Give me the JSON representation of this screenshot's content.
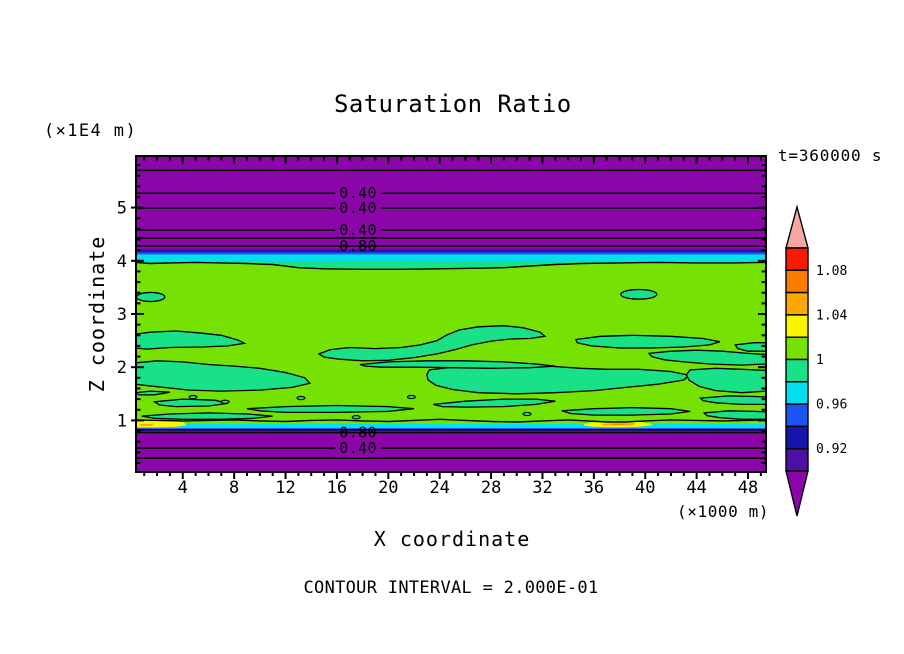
{
  "figure": {
    "title": "Saturation Ratio",
    "time_label": "t=360000 s",
    "footer": "CONTOUR INTERVAL = 2.000E-01",
    "x_axis": {
      "label": "X coordinate",
      "unit": "(×1000 m)"
    },
    "y_axis": {
      "label": "Z coordinate",
      "unit": "(×1E4 m)"
    },
    "colors": {
      "purple": "#8b06a8",
      "violet": "#4d10a5",
      "navy": "#1516b0",
      "royal": "#1b55f4",
      "cyan": "#02e0ef",
      "spring": "#19e187",
      "green": "#76e203",
      "yellow": "#fbf600",
      "orange": "#fda800",
      "orangered": "#fa7d00",
      "red": "#f81c05",
      "pink": "#f6a7a2",
      "line": "#000000",
      "bg": "#ffffff"
    }
  },
  "chart_data": {
    "type": "heatmap",
    "title": "Saturation Ratio",
    "xlabel": "X coordinate (×1000 m)",
    "ylabel": "Z coordinate (×1E4 m)",
    "contour_interval_label": "CONTOUR INTERVAL = 2.000E-01",
    "time": "t=360000 s",
    "x_range": [
      0.36,
      49.4
    ],
    "z_range": [
      0.03,
      5.97
    ],
    "x_major_ticks": [
      4,
      8,
      12,
      16,
      20,
      24,
      28,
      32,
      36,
      40,
      44,
      48
    ],
    "x_minor_step": 1,
    "y_major_ticks": [
      1,
      2,
      3,
      4,
      5
    ],
    "y_minor_step": 0.2,
    "colorbar": {
      "over_color": "pink",
      "under_color": "purple",
      "segment_colors": [
        "red",
        "orangered",
        "orange",
        "yellow",
        "green",
        "spring",
        "cyan",
        "royal",
        "navy",
        "violet"
      ],
      "labels": [
        {
          "text": "1.08",
          "boundary_index": 1
        },
        {
          "text": "1.04",
          "boundary_index": 3
        },
        {
          "text": "1",
          "boundary_index": 5
        },
        {
          "text": "0.96",
          "boundary_index": 7
        },
        {
          "text": "0.92",
          "boundary_index": 9
        }
      ]
    },
    "bands_top": [
      {
        "z0": 4.22,
        "z1": 5.97,
        "c": "purple"
      },
      {
        "z0": 4.19,
        "z1": 4.22,
        "c": "violet"
      },
      {
        "z0": 4.16,
        "z1": 4.19,
        "c": "navy"
      },
      {
        "z0": 4.12,
        "z1": 4.16,
        "c": "royal"
      },
      {
        "z0": 3.99,
        "z1": 4.12,
        "c": "cyan"
      }
    ],
    "spring_cap": {
      "z_top": 3.99,
      "bottom_boundary": [
        [
          0.3,
          3.97
        ],
        [
          1.5,
          3.95
        ],
        [
          3,
          3.96
        ],
        [
          5,
          3.97
        ],
        [
          7,
          3.96
        ],
        [
          9,
          3.95
        ],
        [
          11,
          3.93
        ],
        [
          12,
          3.9
        ],
        [
          13,
          3.87
        ],
        [
          15,
          3.85
        ],
        [
          18,
          3.84
        ],
        [
          21,
          3.84
        ],
        [
          24,
          3.85
        ],
        [
          27,
          3.86
        ],
        [
          29,
          3.87
        ],
        [
          31,
          3.9
        ],
        [
          33,
          3.93
        ],
        [
          35,
          3.95
        ],
        [
          38,
          3.96
        ],
        [
          41,
          3.97
        ],
        [
          44,
          3.96
        ],
        [
          47,
          3.96
        ],
        [
          49.4,
          3.97
        ]
      ]
    },
    "green_bottom_boundary": [
      [
        0.3,
        1.01
      ],
      [
        2,
        1.0
      ],
      [
        4,
        0.99
      ],
      [
        6,
        1.0
      ],
      [
        8,
        1.01
      ],
      [
        10,
        0.99
      ],
      [
        12,
        0.98
      ],
      [
        14,
        1.0
      ],
      [
        16,
        1.01
      ],
      [
        18,
        0.99
      ],
      [
        20,
        0.98
      ],
      [
        22,
        1.0
      ],
      [
        24,
        1.02
      ],
      [
        26,
        1.0
      ],
      [
        28,
        0.98
      ],
      [
        30,
        0.97
      ],
      [
        32,
        0.99
      ],
      [
        34,
        1.01
      ],
      [
        35.5,
        0.99
      ],
      [
        37,
        0.97
      ],
      [
        38.5,
        0.97
      ],
      [
        40,
        0.99
      ],
      [
        42,
        1.01
      ],
      [
        44,
        1.0
      ],
      [
        46,
        0.99
      ],
      [
        48,
        1.0
      ],
      [
        49.4,
        1.01
      ]
    ],
    "bottom_stripes": [
      {
        "z0": 0.855,
        "z1": 0.935,
        "c": "cyan"
      },
      {
        "z0": 0.815,
        "z1": 0.855,
        "c": "royal"
      },
      {
        "z0": 0.79,
        "z1": 0.815,
        "c": "violet"
      },
      {
        "z0": 0.03,
        "z1": 0.79,
        "c": "purple"
      }
    ],
    "purple_top_boundary_z": 0.825,
    "yellow_patches": [
      [
        [
          0.3,
          1.01
        ],
        [
          1.5,
          1.02
        ],
        [
          3,
          1.0
        ],
        [
          4.1,
          0.96
        ],
        [
          4.3,
          0.91
        ],
        [
          3.5,
          0.88
        ],
        [
          2,
          0.87
        ],
        [
          0.3,
          0.87
        ]
      ],
      [
        [
          35.2,
          0.93
        ],
        [
          36,
          0.97
        ],
        [
          37.5,
          0.99
        ],
        [
          39,
          0.98
        ],
        [
          40.3,
          0.95
        ],
        [
          40.6,
          0.91
        ],
        [
          39.5,
          0.88
        ],
        [
          37.5,
          0.87
        ],
        [
          36,
          0.88
        ],
        [
          35.3,
          0.9
        ]
      ]
    ],
    "orange_dashes": [
      [
        [
          0.6,
          0.93
        ],
        [
          1.8,
          0.94
        ],
        [
          1.6,
          0.9
        ],
        [
          0.7,
          0.9
        ]
      ],
      [
        [
          36.5,
          0.94
        ],
        [
          39.3,
          0.95
        ],
        [
          39.0,
          0.91
        ],
        [
          36.8,
          0.91
        ]
      ]
    ],
    "red_dashes": [
      [
        [
          37.3,
          0.94
        ],
        [
          38.6,
          0.94
        ],
        [
          38.4,
          0.915
        ],
        [
          37.5,
          0.915
        ]
      ]
    ],
    "line_contours": [
      {
        "z": 5.7,
        "label": "",
        "boxed": false
      },
      {
        "z": 5.27,
        "label": "0.40",
        "boxed": true
      },
      {
        "z": 4.99,
        "label": "0.40",
        "boxed": true
      },
      {
        "z": 4.58,
        "label": "0.40",
        "boxed": true
      },
      {
        "z": 4.43,
        "label": "",
        "boxed": false
      },
      {
        "z": 4.28,
        "label": "0.80",
        "boxed": false
      },
      {
        "z": 0.77,
        "label": "0.80",
        "boxed": false
      },
      {
        "z": 0.48,
        "label": "0.40",
        "boxed": true
      },
      {
        "z": 0.29,
        "label": "",
        "boxed": false
      }
    ],
    "contour_label_x": 17.65,
    "blob_ellipses": [
      [
        1.5,
        3.32,
        1.1,
        0.085
      ],
      [
        39.5,
        3.37,
        1.4,
        0.09
      ]
    ],
    "blobs": [
      [
        [
          0.3,
          2.62
        ],
        [
          1.5,
          2.66
        ],
        [
          3.5,
          2.68
        ],
        [
          5.5,
          2.64
        ],
        [
          7,
          2.6
        ],
        [
          8.3,
          2.51
        ],
        [
          8.8,
          2.45
        ],
        [
          7.5,
          2.4
        ],
        [
          5.5,
          2.38
        ],
        [
          3,
          2.37
        ],
        [
          1.2,
          2.34
        ],
        [
          0.3,
          2.36
        ]
      ],
      [
        [
          14.6,
          2.25
        ],
        [
          15.5,
          2.33
        ],
        [
          17,
          2.37
        ],
        [
          19,
          2.35
        ],
        [
          21,
          2.37
        ],
        [
          22.5,
          2.42
        ],
        [
          23.8,
          2.5
        ],
        [
          24.5,
          2.6
        ],
        [
          25.5,
          2.7
        ],
        [
          27,
          2.76
        ],
        [
          29,
          2.78
        ],
        [
          30.5,
          2.74
        ],
        [
          31.8,
          2.66
        ],
        [
          32.2,
          2.58
        ],
        [
          31,
          2.54
        ],
        [
          29.5,
          2.53
        ],
        [
          28,
          2.49
        ],
        [
          26.5,
          2.42
        ],
        [
          25.2,
          2.33
        ],
        [
          23.8,
          2.25
        ],
        [
          22,
          2.18
        ],
        [
          20,
          2.13
        ],
        [
          18,
          2.12
        ],
        [
          16.2,
          2.15
        ],
        [
          15,
          2.19
        ]
      ],
      [
        [
          34.6,
          2.52
        ],
        [
          36.5,
          2.58
        ],
        [
          39,
          2.6
        ],
        [
          42,
          2.58
        ],
        [
          44.5,
          2.54
        ],
        [
          45.8,
          2.48
        ],
        [
          45,
          2.42
        ],
        [
          43,
          2.38
        ],
        [
          40.5,
          2.36
        ],
        [
          38,
          2.36
        ],
        [
          35.8,
          2.4
        ],
        [
          34.7,
          2.46
        ]
      ],
      [
        [
          47,
          2.42
        ],
        [
          48.5,
          2.46
        ],
        [
          49.4,
          2.46
        ],
        [
          49.4,
          2.3
        ],
        [
          48,
          2.3
        ],
        [
          47.2,
          2.35
        ]
      ],
      [
        [
          40.3,
          2.26
        ],
        [
          42,
          2.3
        ],
        [
          44,
          2.32
        ],
        [
          46,
          2.3
        ],
        [
          48,
          2.26
        ],
        [
          49.4,
          2.24
        ],
        [
          49.4,
          2.06
        ],
        [
          47.5,
          2.04
        ],
        [
          45,
          2.06
        ],
        [
          43,
          2.1
        ],
        [
          41.5,
          2.14
        ],
        [
          40.5,
          2.2
        ]
      ],
      [
        [
          0.3,
          2.08
        ],
        [
          2,
          2.12
        ],
        [
          4,
          2.1
        ],
        [
          6,
          2.05
        ],
        [
          8,
          2.02
        ],
        [
          10,
          1.98
        ],
        [
          12,
          1.9
        ],
        [
          13.5,
          1.8
        ],
        [
          13.9,
          1.7
        ],
        [
          12.5,
          1.62
        ],
        [
          10,
          1.57
        ],
        [
          7,
          1.55
        ],
        [
          4.5,
          1.57
        ],
        [
          2.5,
          1.62
        ],
        [
          1,
          1.66
        ],
        [
          0.3,
          1.68
        ]
      ],
      [
        [
          23.2,
          1.95
        ],
        [
          25,
          2.0
        ],
        [
          27.5,
          2.03
        ],
        [
          30,
          2.04
        ],
        [
          32.5,
          2.02
        ],
        [
          35,
          1.98
        ],
        [
          37,
          1.96
        ],
        [
          39.5,
          1.96
        ],
        [
          42,
          1.92
        ],
        [
          43.4,
          1.85
        ],
        [
          43,
          1.76
        ],
        [
          41,
          1.68
        ],
        [
          38.5,
          1.62
        ],
        [
          36,
          1.56
        ],
        [
          33,
          1.52
        ],
        [
          30,
          1.5
        ],
        [
          27,
          1.52
        ],
        [
          25,
          1.58
        ],
        [
          23.7,
          1.66
        ],
        [
          23.1,
          1.76
        ],
        [
          23,
          1.86
        ]
      ],
      [
        [
          17.8,
          2.05
        ],
        [
          20,
          2.1
        ],
        [
          23,
          2.12
        ],
        [
          26,
          2.12
        ],
        [
          29,
          2.1
        ],
        [
          31.5,
          2.06
        ],
        [
          33,
          2.02
        ],
        [
          31,
          1.99
        ],
        [
          28,
          1.98
        ],
        [
          25,
          1.99
        ],
        [
          22,
          2.0
        ],
        [
          19.5,
          2.0
        ],
        [
          18.2,
          2.02
        ]
      ],
      [
        [
          43.5,
          1.95
        ],
        [
          45.5,
          1.98
        ],
        [
          47.5,
          1.96
        ],
        [
          49.4,
          1.94
        ],
        [
          49.4,
          1.55
        ],
        [
          47.5,
          1.52
        ],
        [
          45.5,
          1.56
        ],
        [
          44.2,
          1.64
        ],
        [
          43.4,
          1.76
        ],
        [
          43.2,
          1.86
        ]
      ],
      [
        [
          1.8,
          1.35
        ],
        [
          4,
          1.4
        ],
        [
          6.5,
          1.38
        ],
        [
          7.5,
          1.32
        ],
        [
          6,
          1.27
        ],
        [
          3.5,
          1.26
        ],
        [
          2.2,
          1.29
        ]
      ],
      [
        [
          9,
          1.22
        ],
        [
          12,
          1.26
        ],
        [
          16,
          1.28
        ],
        [
          20,
          1.26
        ],
        [
          22,
          1.22
        ],
        [
          20,
          1.17
        ],
        [
          16,
          1.15
        ],
        [
          12,
          1.15
        ],
        [
          10,
          1.18
        ]
      ],
      [
        [
          23.5,
          1.3
        ],
        [
          26,
          1.36
        ],
        [
          29,
          1.4
        ],
        [
          31.5,
          1.4
        ],
        [
          33,
          1.36
        ],
        [
          31.5,
          1.3
        ],
        [
          29,
          1.26
        ],
        [
          26,
          1.25
        ],
        [
          24.2,
          1.26
        ]
      ],
      [
        [
          33.5,
          1.18
        ],
        [
          36,
          1.22
        ],
        [
          39,
          1.24
        ],
        [
          42,
          1.22
        ],
        [
          43.5,
          1.17
        ],
        [
          42,
          1.12
        ],
        [
          39,
          1.1
        ],
        [
          36,
          1.1
        ],
        [
          34.2,
          1.13
        ]
      ],
      [
        [
          44.3,
          1.42
        ],
        [
          46.5,
          1.46
        ],
        [
          48.5,
          1.45
        ],
        [
          49.4,
          1.44
        ],
        [
          49.4,
          1.3
        ],
        [
          47.5,
          1.3
        ],
        [
          45.5,
          1.33
        ],
        [
          44.5,
          1.37
        ]
      ],
      [
        [
          44.6,
          1.14
        ],
        [
          46.5,
          1.18
        ],
        [
          48.5,
          1.17
        ],
        [
          49.4,
          1.16
        ],
        [
          49.4,
          1.02
        ],
        [
          47.5,
          1.02
        ],
        [
          45.8,
          1.05
        ],
        [
          44.8,
          1.09
        ]
      ],
      [
        [
          0.3,
          1.52
        ],
        [
          1.5,
          1.55
        ],
        [
          3,
          1.53
        ],
        [
          1.8,
          1.48
        ],
        [
          0.6,
          1.48
        ]
      ],
      [
        [
          0.8,
          1.08
        ],
        [
          3,
          1.12
        ],
        [
          6,
          1.14
        ],
        [
          9,
          1.12
        ],
        [
          11,
          1.08
        ],
        [
          9.5,
          1.04
        ],
        [
          7,
          1.02
        ],
        [
          4,
          1.02
        ],
        [
          1.8,
          1.04
        ]
      ]
    ],
    "specks": [
      [
        4.8,
        1.44
      ],
      [
        7.3,
        1.35
      ],
      [
        13.2,
        1.42
      ],
      [
        17.5,
        1.06
      ],
      [
        30.8,
        1.12
      ],
      [
        21.8,
        1.44
      ]
    ]
  }
}
